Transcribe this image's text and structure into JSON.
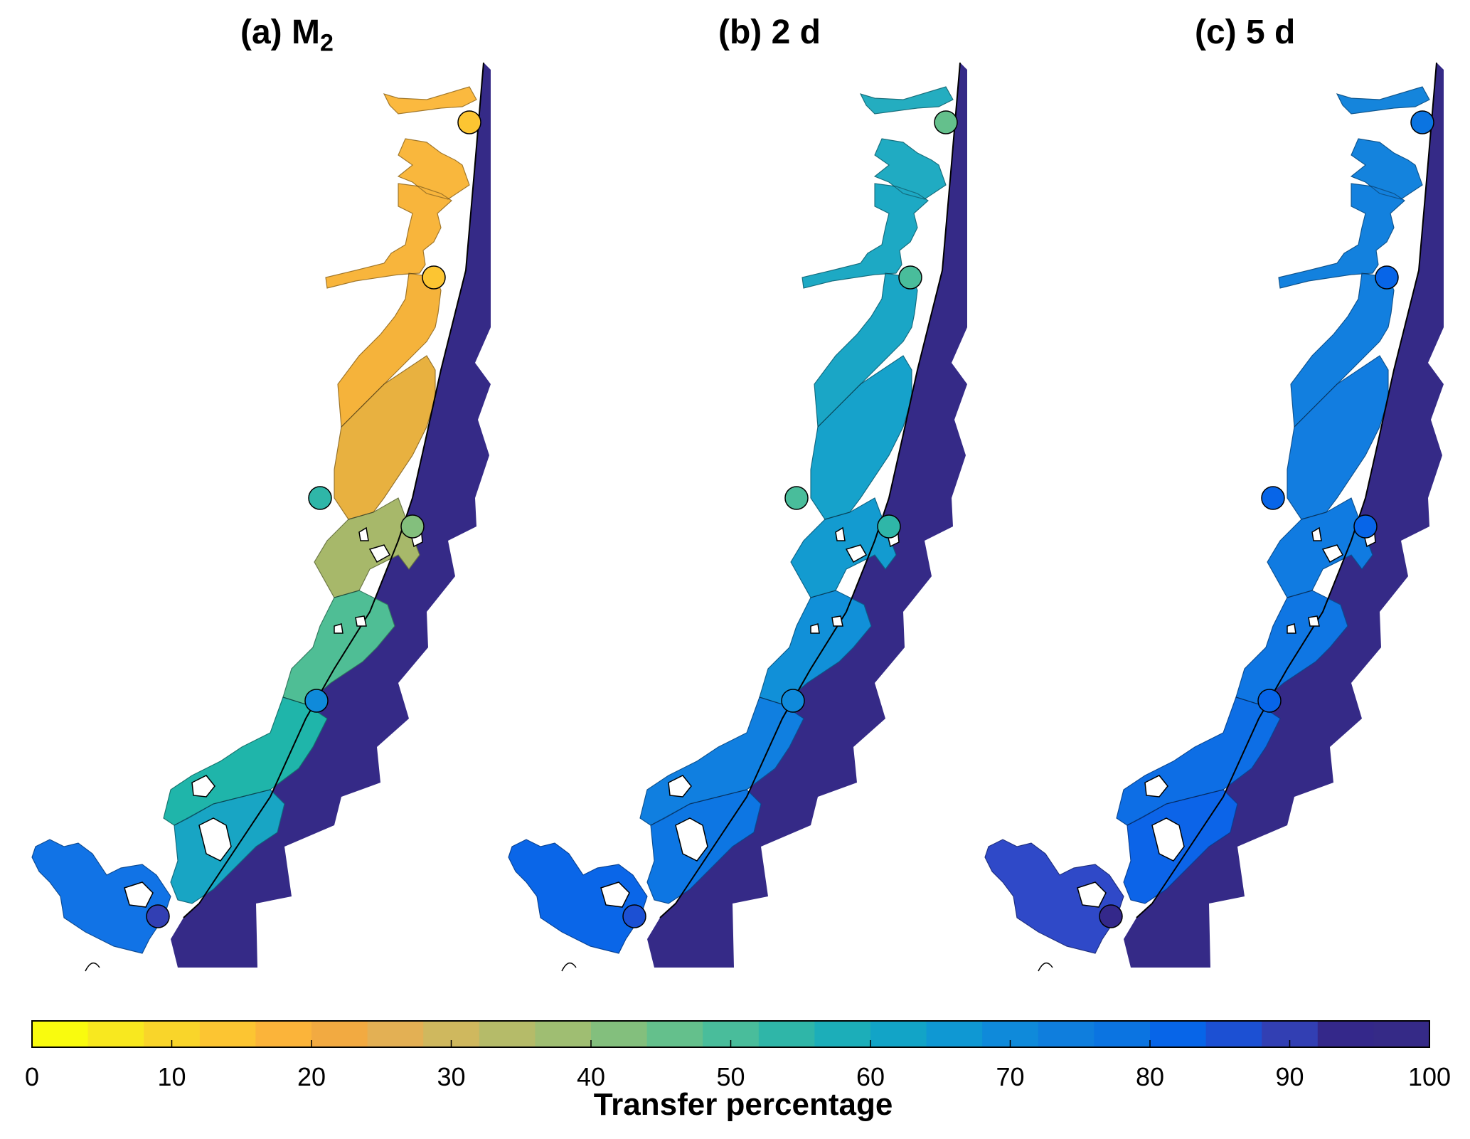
{
  "panels": [
    {
      "id": "a",
      "label": "(a)  M",
      "sub": "2",
      "stations": [
        0.14,
        0.15,
        0.55,
        0.42,
        0.68,
        0.88
      ],
      "bay_colors": [
        "#fbb93f",
        "#f9b73d",
        "#f8b53c",
        "#f5b33b",
        "#e8b140",
        "#a7b86a",
        "#4fbe95",
        "#1fb5aa",
        "#18a5c4",
        "#1173e6"
      ]
    },
    {
      "id": "b",
      "label": "(b)  2 d",
      "sub": "",
      "stations": [
        0.46,
        0.48,
        0.49,
        0.55,
        0.7,
        0.85
      ],
      "bay_colors": [
        "#24adc0",
        "#20abc2",
        "#1da9c4",
        "#1aa6c6",
        "#16a2cb",
        "#139bd0",
        "#1190d8",
        "#107fe0",
        "#0d76e3",
        "#0a66e8"
      ]
    },
    {
      "id": "c",
      "label": "(c)  5 d",
      "sub": "",
      "stations": [
        0.78,
        0.8,
        0.8,
        0.8,
        0.82,
        0.95
      ],
      "bay_colors": [
        "#1585dc",
        "#1483dd",
        "#1381de",
        "#127fdf",
        "#127de0",
        "#107be1",
        "#0f76e3",
        "#0d6ee5",
        "#0c64e8",
        "#2f49c8"
      ]
    }
  ],
  "colorbar": {
    "title": "Transfer percentage",
    "ticks": [
      "0",
      "10",
      "20",
      "30",
      "40",
      "50",
      "60",
      "70",
      "80",
      "90",
      "100"
    ],
    "colors": [
      "#f9fb0e",
      "#f8e81f",
      "#f9d52a",
      "#fcc532",
      "#fbb43a",
      "#f2aa41",
      "#e3b054",
      "#cfb85e",
      "#b5bb69",
      "#9fbe72",
      "#83bf7d",
      "#64c08c",
      "#49bd9b",
      "#2fb6a8",
      "#1caeb9",
      "#12a4c7",
      "#0f98d3",
      "#0f8ada",
      "#0f7edd",
      "#0b74e1",
      "#0765e8",
      "#1c50d3",
      "#323fb3",
      "#34288a",
      "#352a87"
    ],
    "ocean_color": "#352a87",
    "outline_color": "#000000"
  }
}
